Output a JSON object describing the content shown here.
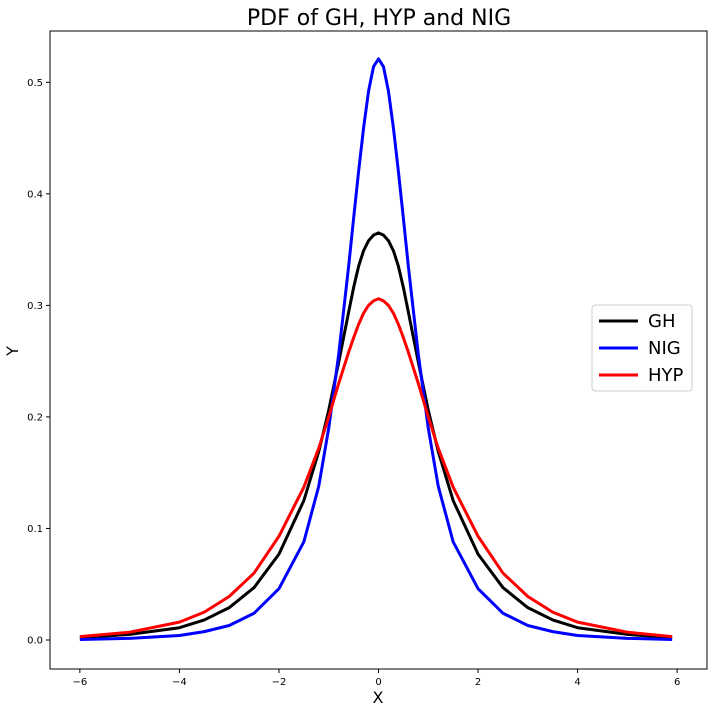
{
  "chart_data": {
    "type": "line",
    "title": "PDF of GH, HYP and NIG",
    "xlabel": "X",
    "ylabel": "Y",
    "xlim": [
      -6.6,
      6.6
    ],
    "ylim": [
      -0.026,
      0.546
    ],
    "xticks": [
      -6,
      -4,
      -2,
      0,
      2,
      4,
      6
    ],
    "xtick_labels": [
      "−6",
      "−4",
      "−2",
      "0",
      "2",
      "4",
      "6"
    ],
    "yticks": [
      0.0,
      0.1,
      0.2,
      0.3,
      0.4,
      0.5
    ],
    "ytick_labels": [
      "0.0",
      "0.1",
      "0.2",
      "0.3",
      "0.4",
      "0.5"
    ],
    "grid": false,
    "legend_position": "center-right",
    "x": [
      -6,
      -5,
      -4,
      -3.5,
      -3,
      -2.5,
      -2,
      -1.5,
      -1.2,
      -1,
      -0.8,
      -0.6,
      -0.5,
      -0.4,
      -0.3,
      -0.2,
      -0.1,
      0,
      0.1,
      0.2,
      0.3,
      0.4,
      0.5,
      0.6,
      0.8,
      1,
      1.2,
      1.5,
      2,
      2.5,
      3,
      3.5,
      4,
      5,
      5.9
    ],
    "series": [
      {
        "name": "GH",
        "color": "#000000",
        "values": [
          0.002,
          0.005,
          0.011,
          0.018,
          0.029,
          0.047,
          0.077,
          0.125,
          0.169,
          0.206,
          0.249,
          0.294,
          0.316,
          0.335,
          0.349,
          0.358,
          0.363,
          0.365,
          0.363,
          0.358,
          0.349,
          0.335,
          0.316,
          0.294,
          0.249,
          0.206,
          0.169,
          0.125,
          0.077,
          0.047,
          0.029,
          0.018,
          0.011,
          0.005,
          0.002
        ]
      },
      {
        "name": "NIG",
        "color": "#0000ff",
        "values": [
          0.0005,
          0.0015,
          0.004,
          0.0075,
          0.013,
          0.024,
          0.046,
          0.088,
          0.138,
          0.19,
          0.256,
          0.335,
          0.378,
          0.42,
          0.459,
          0.492,
          0.514,
          0.521,
          0.514,
          0.492,
          0.459,
          0.42,
          0.378,
          0.335,
          0.256,
          0.19,
          0.138,
          0.088,
          0.046,
          0.024,
          0.013,
          0.0075,
          0.004,
          0.0015,
          0.0005
        ]
      },
      {
        "name": "HYP",
        "color": "#ff0000",
        "values": [
          0.003,
          0.007,
          0.016,
          0.025,
          0.039,
          0.06,
          0.093,
          0.137,
          0.172,
          0.2,
          0.23,
          0.258,
          0.271,
          0.283,
          0.293,
          0.3,
          0.304,
          0.306,
          0.304,
          0.3,
          0.293,
          0.283,
          0.271,
          0.258,
          0.23,
          0.2,
          0.172,
          0.137,
          0.093,
          0.06,
          0.039,
          0.025,
          0.016,
          0.007,
          0.003
        ]
      }
    ]
  }
}
